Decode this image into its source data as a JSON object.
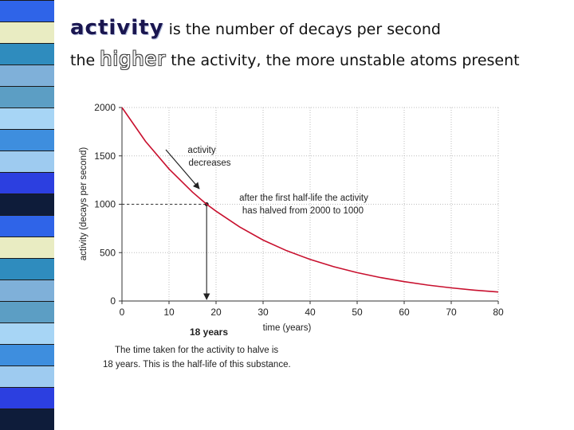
{
  "stripe": {
    "colors": [
      "#2f64e8",
      "#9ecbf0",
      "#5c9ec4",
      "#e9ecc2",
      "#2c3fe0",
      "#a7d5f5",
      "#2f8cbe",
      "#0e1c3a",
      "#3e8ede",
      "#7fb0d9"
    ]
  },
  "header": {
    "line1": {
      "keyword": "activity",
      "rest": " is the number of decays per second"
    },
    "line2": {
      "prefix": "the ",
      "keyword": "higher",
      "rest": " the activity, the more unstable atoms present"
    }
  },
  "colors": {
    "curve": "#c8102e",
    "guide": "#333333",
    "grid": "#bdbdbd",
    "axis": "#333333"
  },
  "chart_data": {
    "type": "line",
    "title": "",
    "xlabel": "time (years)",
    "ylabel": "activity (decays per second)",
    "xlim": [
      0,
      80
    ],
    "ylim": [
      0,
      2000
    ],
    "x_ticks": [
      0,
      10,
      20,
      30,
      40,
      50,
      60,
      70,
      80
    ],
    "y_ticks": [
      0,
      500,
      1000,
      1500,
      2000
    ],
    "grid": true,
    "series": [
      {
        "name": "activity",
        "x": [
          0,
          5,
          10,
          15,
          18,
          20,
          25,
          30,
          35,
          40,
          45,
          50,
          55,
          60,
          65,
          70,
          75,
          80
        ],
        "y": [
          2000,
          1650,
          1365,
          1125,
          1000,
          928,
          766,
          630,
          520,
          430,
          355,
          293,
          242,
          200,
          165,
          136,
          112,
          93
        ]
      }
    ],
    "half_life": {
      "x": 18,
      "y": 1000
    },
    "annotations": {
      "decrease": [
        "activity",
        "decreases"
      ],
      "halved": [
        "after the first half-life the activity",
        "has halved from 2000 to 1000"
      ],
      "years_label": "18 years",
      "caption": [
        "The time taken for the activity to halve is",
        "18 years. This is the half-life of this substance."
      ]
    }
  }
}
